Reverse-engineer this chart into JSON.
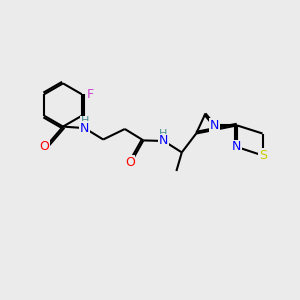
{
  "bg_color": "#ebebeb",
  "bond_color": "#000000",
  "line_width": 1.5,
  "atom_colors": {
    "O": "#ff0000",
    "N": "#0000ff",
    "H": "#4a9090",
    "F": "#cc44cc",
    "S": "#cccc00",
    "C": "#000000"
  },
  "font_size": 9,
  "font_size_small": 8
}
